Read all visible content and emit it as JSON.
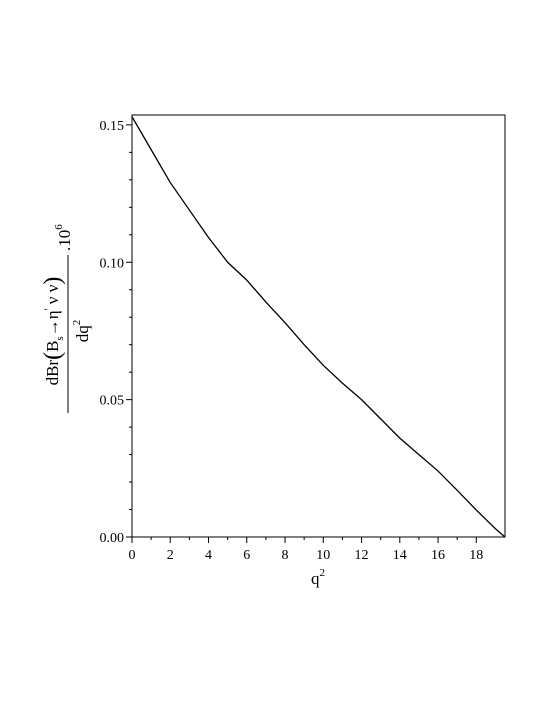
{
  "chart_data": {
    "type": "line",
    "x_label": {
      "base": "q",
      "sup": "2"
    },
    "y_label": {
      "d": "dBr",
      "open": "(",
      "b": "B",
      "sub": "s",
      "arrow": "→η",
      "prime": "'",
      "nu": "ν ν",
      "close": ")",
      "den": "dq",
      "den_sup": "2",
      "factor": ".10",
      "factor_sup": "6"
    },
    "x": [
      0,
      1,
      2,
      3,
      4,
      5,
      6,
      7,
      8,
      9,
      10,
      11,
      12,
      13,
      14,
      15,
      16,
      17,
      18,
      19,
      19.5
    ],
    "series": [
      {
        "name": "dBr/dq2",
        "color": "#000000",
        "values": [
          0.153,
          0.141,
          0.129,
          0.119,
          0.109,
          0.1,
          0.0935,
          0.0855,
          0.078,
          0.07,
          0.0625,
          0.056,
          0.05,
          0.043,
          0.036,
          0.03,
          0.024,
          0.017,
          0.0098,
          0.003,
          0.0
        ]
      }
    ],
    "xlim": [
      0,
      19.5
    ],
    "ylim": [
      0,
      0.1536
    ],
    "xticks": [
      0,
      2,
      4,
      6,
      8,
      10,
      12,
      14,
      16,
      18
    ],
    "yticks": [
      {
        "value": 0,
        "label": "0.00"
      },
      {
        "value": 0.05,
        "label": "0.05"
      },
      {
        "value": 0.1,
        "label": "0.10"
      },
      {
        "value": 0.15,
        "label": "0.15"
      }
    ]
  }
}
